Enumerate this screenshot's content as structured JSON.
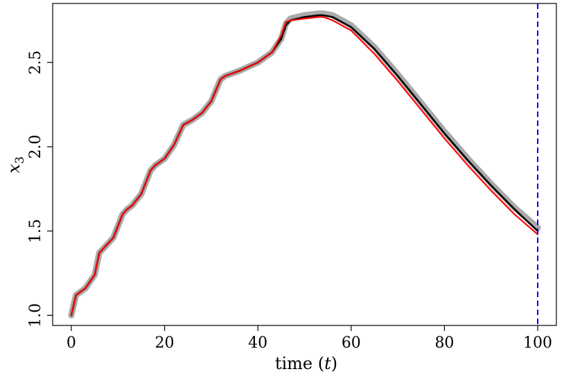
{
  "chart_data": {
    "type": "line",
    "title": "",
    "xlabel": "time (t)",
    "ylabel": "x3",
    "xlim": [
      -4,
      104
    ],
    "ylim": [
      0.94,
      2.85
    ],
    "x_ticks": [
      0,
      20,
      40,
      60,
      80,
      100
    ],
    "y_ticks": [
      1.0,
      1.5,
      2.0,
      2.5
    ],
    "x_tick_labels": [
      "0",
      "20",
      "40",
      "60",
      "80",
      "100"
    ],
    "y_tick_labels": [
      "1.0",
      "1.5",
      "2.0",
      "2.5"
    ],
    "grid": false,
    "legend": "none",
    "vertical_line": {
      "x": 100,
      "color": "#0000ff",
      "style": "dashed"
    },
    "series": [
      {
        "color": "#aaaaaa",
        "style": "band",
        "x": [
          0,
          1,
          3,
          5,
          6,
          7,
          9,
          11,
          12,
          13,
          15,
          17,
          18,
          20,
          22,
          24,
          26,
          28,
          30,
          32,
          33,
          36,
          40,
          43,
          45,
          46,
          47,
          50,
          53,
          54,
          56,
          60,
          65,
          70,
          75,
          80,
          85,
          90,
          95,
          100
        ],
        "y": [
          1.0,
          1.12,
          1.16,
          1.24,
          1.37,
          1.4,
          1.46,
          1.6,
          1.63,
          1.65,
          1.72,
          1.86,
          1.89,
          1.93,
          2.01,
          2.13,
          2.16,
          2.2,
          2.27,
          2.4,
          2.42,
          2.45,
          2.5,
          2.56,
          2.64,
          2.73,
          2.76,
          2.78,
          2.79,
          2.79,
          2.78,
          2.72,
          2.59,
          2.43,
          2.26,
          2.09,
          1.93,
          1.78,
          1.64,
          1.52
        ]
      },
      {
        "color": "#000000",
        "style": "solid",
        "x": [
          0,
          1,
          3,
          5,
          6,
          7,
          9,
          11,
          12,
          13,
          15,
          17,
          18,
          20,
          22,
          24,
          26,
          28,
          30,
          32,
          33,
          36,
          40,
          43,
          45,
          46,
          47,
          50,
          53,
          54,
          56,
          60,
          65,
          70,
          75,
          80,
          85,
          90,
          95,
          100
        ],
        "y": [
          1.0,
          1.12,
          1.16,
          1.24,
          1.37,
          1.4,
          1.46,
          1.6,
          1.63,
          1.65,
          1.72,
          1.86,
          1.89,
          1.93,
          2.01,
          2.13,
          2.16,
          2.2,
          2.27,
          2.4,
          2.42,
          2.45,
          2.5,
          2.56,
          2.64,
          2.72,
          2.75,
          2.77,
          2.78,
          2.78,
          2.77,
          2.71,
          2.58,
          2.42,
          2.25,
          2.08,
          1.92,
          1.77,
          1.63,
          1.5
        ]
      },
      {
        "color": "#ff0000",
        "style": "solid",
        "x": [
          0,
          1,
          3,
          5,
          6,
          7,
          9,
          11,
          12,
          13,
          15,
          17,
          18,
          20,
          22,
          24,
          26,
          28,
          30,
          32,
          33,
          36,
          40,
          43,
          45,
          46,
          47,
          50,
          53,
          54,
          56,
          60,
          65,
          70,
          75,
          80,
          85,
          90,
          95,
          100
        ],
        "y": [
          1.0,
          1.12,
          1.16,
          1.24,
          1.37,
          1.4,
          1.46,
          1.6,
          1.63,
          1.65,
          1.72,
          1.86,
          1.89,
          1.93,
          2.01,
          2.13,
          2.16,
          2.2,
          2.27,
          2.4,
          2.42,
          2.45,
          2.5,
          2.56,
          2.66,
          2.74,
          2.75,
          2.76,
          2.77,
          2.77,
          2.75,
          2.69,
          2.55,
          2.39,
          2.22,
          2.05,
          1.89,
          1.74,
          1.6,
          1.48
        ]
      }
    ]
  }
}
